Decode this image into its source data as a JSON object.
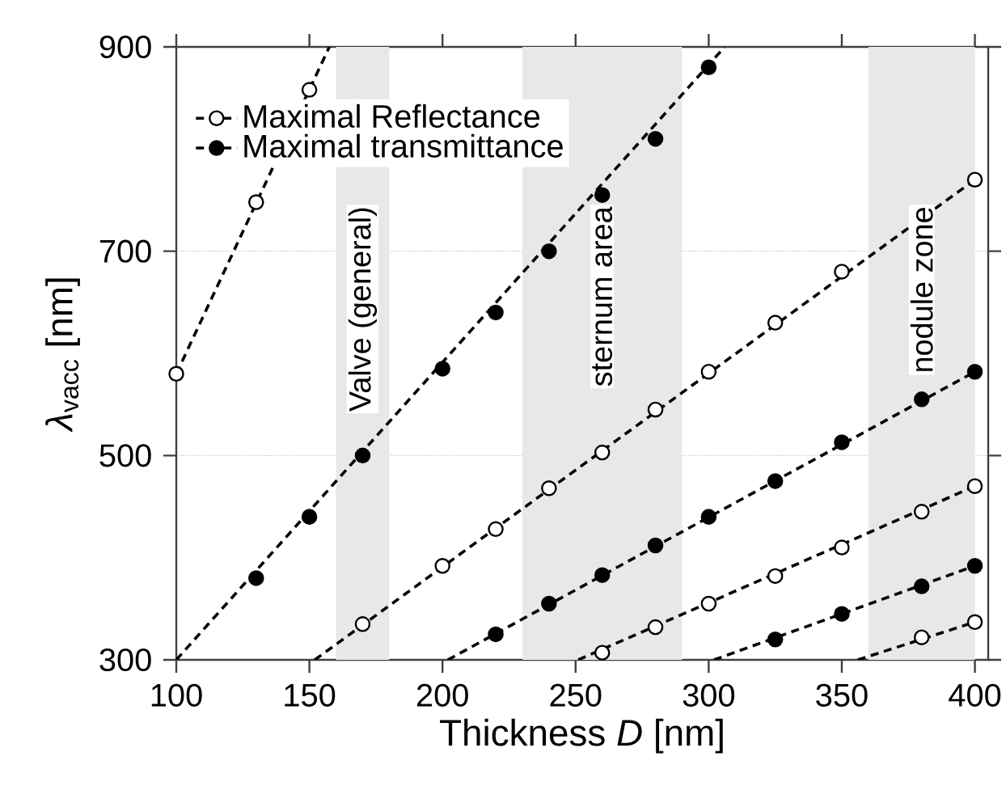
{
  "chart_data": {
    "type": "scatter",
    "xlabel": "Thickness *D* [nm]",
    "ylabel": "*λ*$_{vacc}$ [nm]",
    "xlim": [
      100,
      405
    ],
    "ylim": [
      300,
      900
    ],
    "xticks": [
      100,
      150,
      200,
      250,
      300,
      350,
      400
    ],
    "yticks": [
      300,
      500,
      700,
      900
    ],
    "grid": "y",
    "legend": "top left",
    "marker": "circle",
    "line_style": "dashed",
    "bands": [
      {
        "axis": "x",
        "from": 160,
        "to": 180,
        "label": "Valve (general)",
        "color": "#e8e8e8"
      },
      {
        "axis": "x",
        "from": 230,
        "to": 290,
        "label": "sternum area",
        "color": "#e8e8e8"
      },
      {
        "axis": "x",
        "from": 360,
        "to": 400,
        "label": "nodule zone",
        "color": "#e8e8e8"
      }
    ],
    "series": [
      {
        "name": "Maximal Reflectance",
        "color": "#ffffff",
        "x": [
          100,
          130,
          150
        ],
        "values": [
          580,
          748,
          858
        ]
      },
      {
        "name": "Maximal transmittance",
        "color": "#000000",
        "x": [
          130,
          150,
          170,
          200,
          220,
          240,
          260,
          280,
          300
        ],
        "values": [
          380,
          440,
          500,
          585,
          640,
          700,
          755,
          810,
          880
        ]
      },
      {
        "color": "#ffffff",
        "x": [
          170,
          200,
          220,
          240,
          260,
          280,
          300,
          325,
          350,
          400
        ],
        "values": [
          335,
          392,
          428,
          468,
          503,
          545,
          582,
          630,
          680,
          770
        ]
      },
      {
        "color": "#000000",
        "x": [
          220,
          240,
          260,
          280,
          300,
          325,
          350,
          380,
          400
        ],
        "values": [
          325,
          355,
          383,
          412,
          440,
          475,
          513,
          555,
          582
        ]
      },
      {
        "color": "#ffffff",
        "x": [
          260,
          280,
          300,
          325,
          350,
          380,
          400
        ],
        "values": [
          307,
          332,
          355,
          382,
          410,
          445,
          470
        ]
      },
      {
        "color": "#000000",
        "x": [
          325,
          350,
          380,
          400
        ],
        "values": [
          320,
          345,
          372,
          392
        ]
      },
      {
        "color": "#ffffff",
        "x": [
          380,
          400
        ],
        "values": [
          322,
          337
        ]
      },
      {
        "type": "line",
        "marker": "none",
        "color": "#000000",
        "x": [
          100,
          157.5
        ],
        "values": [
          580,
          900
        ]
      },
      {
        "type": "line",
        "marker": "none",
        "color": "#000000",
        "x": [
          100,
          306
        ],
        "values": [
          300,
          900
        ]
      },
      {
        "type": "line",
        "marker": "none",
        "color": "#000000",
        "x": [
          152,
          400
        ],
        "values": [
          300,
          770
        ]
      },
      {
        "type": "line",
        "marker": "none",
        "color": "#000000",
        "x": [
          202,
          400
        ],
        "values": [
          300,
          582
        ]
      },
      {
        "type": "line",
        "marker": "none",
        "color": "#000000",
        "x": [
          251,
          400
        ],
        "values": [
          300,
          470
        ]
      },
      {
        "type": "line",
        "marker": "none",
        "color": "#000000",
        "x": [
          302,
          400
        ],
        "values": [
          300,
          392
        ]
      },
      {
        "type": "line",
        "marker": "none",
        "color": "#000000",
        "x": [
          356,
          400
        ],
        "values": [
          300,
          337
        ]
      }
    ]
  }
}
